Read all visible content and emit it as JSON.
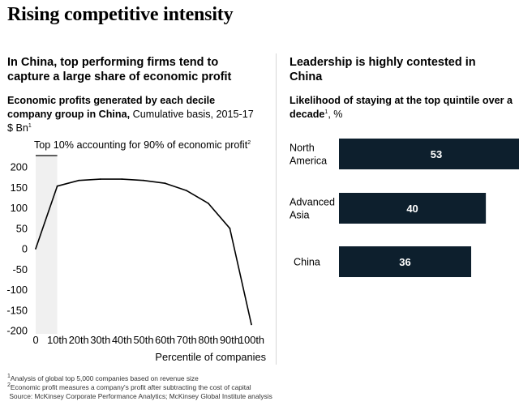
{
  "title": "Rising competitive intensity",
  "left": {
    "heading": "In China, top performing firms tend to capture a large share of economic profit",
    "subtitle_bold": "Economic profits generated by each decile company group in China,",
    "subtitle_rest": " Cumulative basis, 2015-17 $ Bn",
    "subtitle_sup": "1",
    "annotation": "Top 10% accounting for 90% of economic profit",
    "annotation_sup": "2"
  },
  "right": {
    "heading": "Leadership is highly contested in China",
    "subtitle_bold": "Likelihood of staying at the top quintile over a decade",
    "subtitle_sup": "1",
    "subtitle_rest": ", %"
  },
  "chart_data": [
    {
      "type": "line",
      "xlabel": "Percentile of companies",
      "x": [
        "0",
        "10th",
        "20th",
        "30th",
        "40th",
        "50th",
        "60th",
        "70th",
        "80th",
        "90th",
        "100th"
      ],
      "y": [
        0,
        153,
        167,
        170,
        170,
        167,
        160,
        142,
        111,
        50,
        -185
      ],
      "yticks": [
        200,
        150,
        100,
        50,
        0,
        -50,
        -100,
        -150,
        -200
      ],
      "ylim": [
        -200,
        225
      ],
      "highlight": {
        "from": "0",
        "to": "10th",
        "color": "#f0f0f0"
      },
      "line_color": "#000000",
      "grid": false
    },
    {
      "type": "bar",
      "orientation": "horizontal",
      "categories": [
        "North America",
        "Advanced Asia",
        "China"
      ],
      "values": [
        53,
        40,
        36
      ],
      "bar_color": "#0d1f2d",
      "label_color": "#ffffff"
    }
  ],
  "footnotes": [
    {
      "sup": "1",
      "text": "Analysis of global top 5,000 companies based on revenue size"
    },
    {
      "sup": "2",
      "text": "Economic profit measures a company's profit after subtracting the cost of capital"
    },
    {
      "sup": "",
      "text": "Source: McKinsey Corporate Performance Analytics; McKinsey Global Institute analysis"
    }
  ]
}
